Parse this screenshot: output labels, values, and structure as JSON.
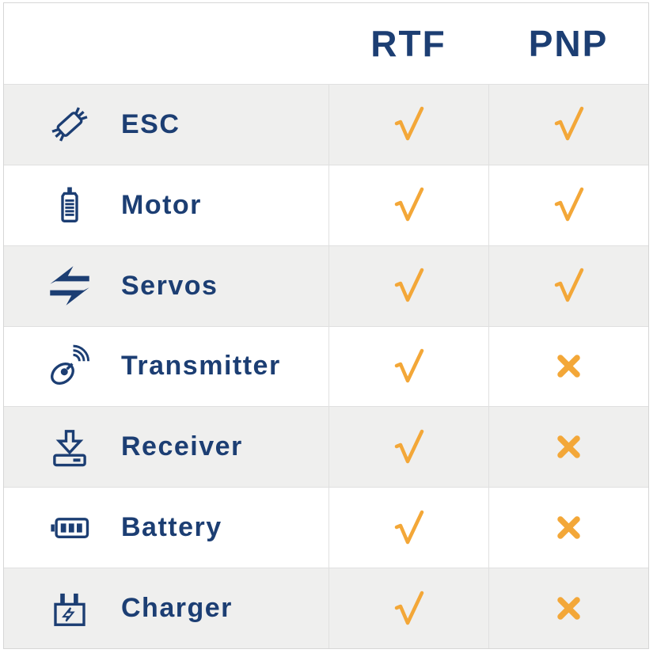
{
  "chart_data": {
    "type": "table",
    "columns": [
      "RTF",
      "PNP"
    ],
    "rows": [
      {
        "label": "ESC",
        "icon": "esc-icon",
        "RTF": "check",
        "PNP": "check"
      },
      {
        "label": "Motor",
        "icon": "motor-icon",
        "RTF": "check",
        "PNP": "check"
      },
      {
        "label": "Servos",
        "icon": "servos-icon",
        "RTF": "check",
        "PNP": "check"
      },
      {
        "label": "Transmitter",
        "icon": "transmitter-icon",
        "RTF": "check",
        "PNP": "cross"
      },
      {
        "label": "Receiver",
        "icon": "receiver-icon",
        "RTF": "check",
        "PNP": "cross"
      },
      {
        "label": "Battery",
        "icon": "battery-icon",
        "RTF": "check",
        "PNP": "cross"
      },
      {
        "label": "Charger",
        "icon": "charger-icon",
        "RTF": "check",
        "PNP": "cross"
      }
    ],
    "marks": {
      "check": "check-icon",
      "cross": "cross-icon"
    },
    "layout": {
      "grid": "on",
      "alternating_rows": true,
      "first_data_row_shaded": true
    }
  },
  "colors": {
    "navy": "#1c3e73",
    "amber": "#f3a738",
    "row_alt_bg": "#efefee",
    "border_outer": "#d6d6d6",
    "border_line": "#e0e0e0"
  }
}
